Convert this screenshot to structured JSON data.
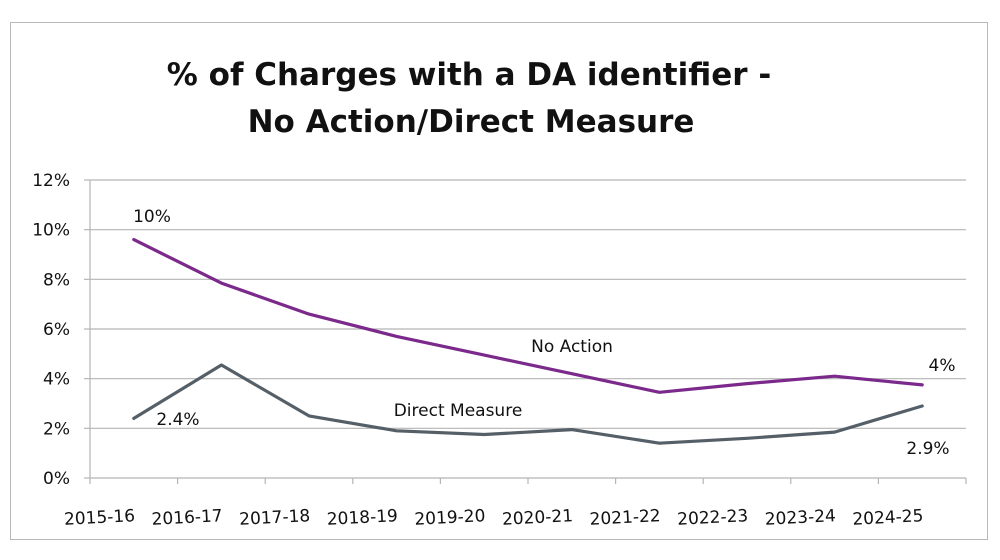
{
  "chart_data": {
    "type": "line",
    "title": "% of Charges with a DA identifier -",
    "subtitle": "No Action/Direct Measure",
    "xlabel": "",
    "ylabel": "",
    "categories": [
      "2015-16",
      "2016-17",
      "2017-18",
      "2018-19",
      "2019-20",
      "2020-21",
      "2021-22",
      "2022-23",
      "2023-24",
      "2024-25"
    ],
    "ylim": [
      0,
      12
    ],
    "yticks": [
      0,
      2,
      4,
      6,
      8,
      10,
      12
    ],
    "ytick_labels": [
      "0%",
      "2%",
      "4%",
      "6%",
      "8%",
      "10%",
      "12%"
    ],
    "grid": true,
    "legend": "none",
    "series": [
      {
        "name": "No Action",
        "color": "#7b2a8c",
        "values": [
          9.6,
          7.85,
          6.6,
          5.7,
          4.95,
          4.2,
          3.45,
          3.8,
          4.1,
          3.75
        ],
        "series_label": "No Action",
        "data_labels": [
          {
            "index": 0,
            "text": "10%"
          },
          {
            "index": 9,
            "text": "4%"
          }
        ]
      },
      {
        "name": "Direct Measure",
        "color": "#555f68",
        "values": [
          2.4,
          4.55,
          2.5,
          1.9,
          1.75,
          1.95,
          1.4,
          1.6,
          1.85,
          2.9
        ],
        "series_label": "Direct Measure",
        "data_labels": [
          {
            "index": 0,
            "text": "2.4%"
          },
          {
            "index": 9,
            "text": "2.9%"
          }
        ]
      }
    ]
  }
}
